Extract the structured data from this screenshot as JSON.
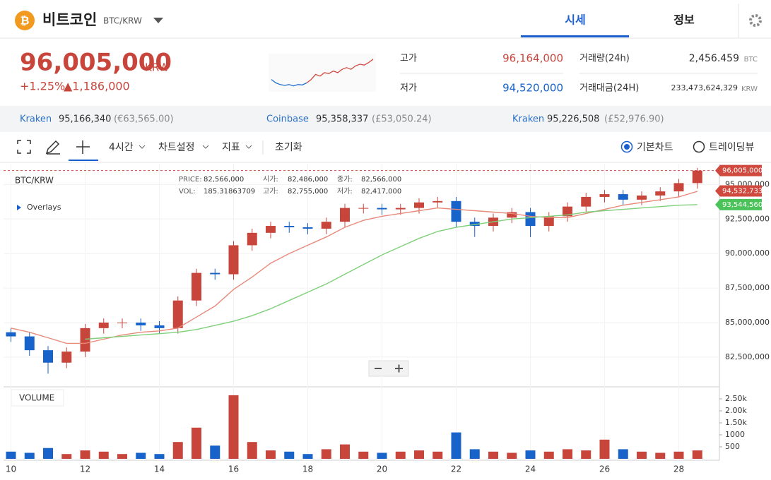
{
  "header": {
    "name": "비트코인",
    "pair": "BTC/KRW",
    "tabs": [
      "시세",
      "정보"
    ]
  },
  "summary": {
    "price": "96,005,000",
    "currency": "KRW",
    "change_pct": "+1.25%",
    "change_amt": "▲1,186,000",
    "stats": [
      {
        "label": "고가",
        "value": "96,164,000"
      },
      {
        "label": "저가",
        "value": "94,520,000"
      },
      {
        "label": "거래량(24h)",
        "value": "2,456.459",
        "unit": "BTC"
      },
      {
        "label": "거래대금(24H)",
        "value": "233,473,624,329",
        "unit": "KRW"
      }
    ],
    "sparkline": {
      "series": [
        {
          "color": "#1f6fd1",
          "values": [
            94.9,
            94.7,
            94.6,
            94.55,
            94.6,
            94.52,
            94.6,
            94.58,
            94.7,
            null,
            null,
            null,
            null,
            null,
            null,
            null,
            null,
            null,
            null,
            null,
            null,
            null,
            null,
            null
          ]
        },
        {
          "color": "#d0493f",
          "values": [
            null,
            null,
            null,
            null,
            null,
            null,
            null,
            null,
            94.7,
            94.9,
            95.2,
            95.1,
            95.3,
            95.25,
            95.4,
            95.3,
            95.5,
            95.6,
            95.5,
            95.7,
            95.8,
            95.75,
            95.9,
            96.1
          ]
        }
      ],
      "ylim": [
        94.3,
        96.3
      ]
    }
  },
  "exchanges": [
    {
      "name": "Kraken",
      "price": "95,166,340",
      "alt": "(€63,565.00)"
    },
    {
      "name": "Coinbase",
      "price": "95,358,337",
      "alt": "(£53,050.24)"
    },
    {
      "name": "Kraken",
      "price": "95,226,508",
      "alt": "(£52,976.90)"
    }
  ],
  "toolbar": {
    "interval": "4시간",
    "items": [
      "차트설정",
      "지표"
    ],
    "reset": "초기화",
    "views": [
      "기본차트",
      "트레이딩뷰"
    ]
  },
  "chart_data": {
    "type": "candlestick",
    "symbol": "BTC/KRW",
    "overlays_label": "Overlays",
    "volume_label": "VOLUME",
    "info": [
      {
        "label": "PRICE:",
        "value": "82,566,000"
      },
      {
        "label": "시가:",
        "value": "82,486,000"
      },
      {
        "label": "종가:",
        "value": "82,566,000"
      },
      {
        "label": "VOL:",
        "value": "185.31863709"
      },
      {
        "label": "고가:",
        "value": "82,755,000"
      },
      {
        "label": "저가:",
        "value": "82,417,000"
      }
    ],
    "x": [
      10,
      10.5,
      11,
      11.5,
      12,
      12.5,
      13,
      13.5,
      14,
      14.5,
      15,
      15.5,
      16,
      16.5,
      17,
      17.5,
      18,
      18.5,
      19,
      19.5,
      20,
      20.5,
      21,
      21.5,
      22,
      22.5,
      23,
      23.5,
      24,
      24.5,
      25,
      25.5,
      26,
      26.5,
      27,
      27.5,
      28,
      28.5
    ],
    "xlim": [
      9.8,
      29.0
    ],
    "xticks": [
      10,
      12,
      14,
      16,
      18,
      20,
      22,
      24,
      26,
      28
    ],
    "open": [
      84300000,
      84000000,
      83000000,
      82100000,
      82900000,
      84600000,
      85000000,
      85000000,
      84800000,
      84600000,
      86600000,
      88600000,
      88500000,
      90600000,
      91500000,
      92000000,
      91900000,
      91800000,
      92300000,
      93300000,
      93300000,
      93200000,
      93300000,
      93700000,
      93800000,
      92300000,
      92000000,
      92600000,
      93000000,
      92000000,
      92700000,
      93400000,
      94100000,
      94300000,
      93900000,
      94200000,
      94500000,
      95100000
    ],
    "high": [
      84600000,
      84300000,
      83300000,
      83200000,
      84900000,
      85300000,
      85300000,
      85300000,
      85100000,
      86900000,
      88900000,
      88900000,
      90900000,
      91800000,
      92300000,
      92300000,
      92200000,
      92600000,
      93600000,
      93600000,
      93600000,
      93600000,
      94000000,
      94100000,
      94100000,
      92600000,
      92900000,
      93300000,
      93300000,
      93000000,
      93700000,
      94400000,
      94600000,
      94600000,
      94500000,
      94800000,
      95400000,
      96200000
    ],
    "low": [
      83600000,
      82600000,
      81300000,
      81700000,
      82500000,
      84200000,
      84600000,
      84400000,
      84200000,
      84200000,
      86200000,
      88100000,
      88100000,
      90200000,
      91100000,
      91500000,
      91400000,
      91400000,
      91900000,
      92900000,
      92800000,
      92800000,
      92900000,
      93300000,
      91900000,
      91200000,
      91600000,
      92200000,
      91200000,
      91600000,
      92300000,
      93000000,
      93700000,
      93500000,
      93500000,
      93800000,
      94100000,
      94700000
    ],
    "close": [
      84000000,
      83000000,
      82100000,
      82900000,
      84600000,
      85000000,
      85000000,
      84800000,
      84600000,
      86600000,
      88600000,
      88500000,
      90600000,
      91500000,
      92000000,
      91900000,
      91800000,
      92300000,
      93300000,
      93300000,
      93200000,
      93300000,
      93700000,
      93800000,
      92300000,
      92000000,
      92600000,
      93000000,
      92000000,
      92700000,
      93400000,
      94100000,
      94300000,
      93900000,
      94200000,
      94500000,
      95100000,
      96005000
    ],
    "volume": [
      300,
      250,
      450,
      200,
      350,
      300,
      200,
      250,
      200,
      700,
      1300,
      550,
      2650,
      700,
      350,
      300,
      200,
      400,
      600,
      300,
      250,
      300,
      350,
      300,
      1100,
      400,
      300,
      250,
      350,
      300,
      400,
      350,
      800,
      400,
      300,
      250,
      300,
      350
    ],
    "up_color": "#c8453b",
    "down_color": "#1763c9",
    "overlays": [
      {
        "color": "#e88a7a",
        "values": [
          84600000,
          84300000,
          83900000,
          83500000,
          83500000,
          83800000,
          84100000,
          84300000,
          84400000,
          84600000,
          85400000,
          86200000,
          87400000,
          88300000,
          89300000,
          90000000,
          90600000,
          91200000,
          91900000,
          92400000,
          92700000,
          92900000,
          93100000,
          93300000,
          93200000,
          93100000,
          93000000,
          92900000,
          92700000,
          92600000,
          92600000,
          92900000,
          93200000,
          93500000,
          93700000,
          93900000,
          94100000,
          94500000
        ]
      },
      {
        "color": "#7fd07a",
        "values": [
          null,
          null,
          null,
          null,
          83800000,
          83900000,
          84000000,
          84100000,
          84200000,
          84300000,
          84500000,
          84800000,
          85100000,
          85500000,
          86000000,
          86600000,
          87200000,
          87800000,
          88500000,
          89200000,
          89900000,
          90500000,
          91100000,
          91600000,
          91900000,
          92100000,
          92300000,
          92500000,
          92600000,
          92700000,
          92800000,
          93000000,
          93100000,
          93200000,
          93300000,
          93400000,
          93500000,
          93540000
        ]
      }
    ],
    "price_tags": [
      {
        "value": 96005000,
        "label": "96,005,000",
        "color": "#d0493f"
      },
      {
        "value": 94532733,
        "label": "94,532,733",
        "color": "#d0493f"
      },
      {
        "value": 93544560,
        "label": "93,544,560",
        "color": "#4cc35a"
      }
    ],
    "ylim": [
      80350000,
      96500000
    ],
    "yticks": [
      {
        "value": 82500000,
        "label": "82,500,000"
      },
      {
        "value": 85000000,
        "label": "85,000,000"
      },
      {
        "value": 87500000,
        "label": "87,500,000"
      },
      {
        "value": 90000000,
        "label": "90,000,000"
      },
      {
        "value": 92500000,
        "label": "92,500,000"
      },
      {
        "value": 95000000,
        "label": "95,000,000"
      }
    ],
    "vol_ylim": [
      0,
      3000
    ],
    "vol_yticks": [
      500,
      1000,
      {
        "value": 1500,
        "label": "1.50k"
      },
      {
        "value": 2000,
        "label": "2.00k"
      },
      {
        "value": 2500,
        "label": "2.50k"
      }
    ],
    "grid": true
  }
}
